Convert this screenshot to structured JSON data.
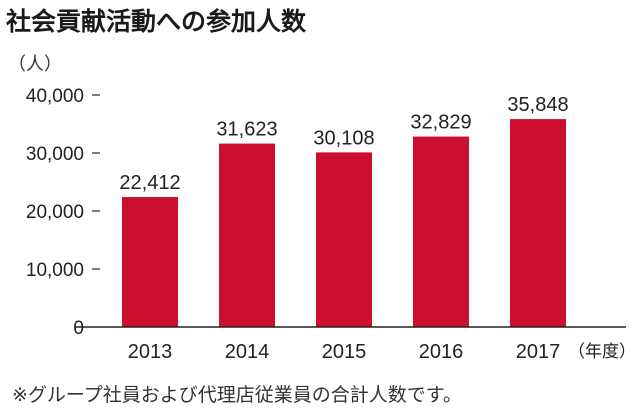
{
  "title": "社会貢献活動への参加人数",
  "footnote": "※グループ社員および代理店従業員の合計人数です。",
  "chart_data": {
    "type": "bar",
    "title": "社会貢献活動への参加人数",
    "ylabel": "（人）",
    "xlabel": "（年度）",
    "categories": [
      "2013",
      "2014",
      "2015",
      "2016",
      "2017"
    ],
    "values": [
      22412,
      31623,
      30108,
      32829,
      35848
    ],
    "value_labels": [
      "22,412",
      "31,623",
      "30,108",
      "32,829",
      "35,848"
    ],
    "ylim": [
      0,
      40000
    ],
    "yticks": [
      0,
      10000,
      20000,
      30000,
      40000
    ],
    "ytick_labels": [
      "0",
      "10,000",
      "20,000",
      "30,000",
      "40,000"
    ],
    "grid": false,
    "bar_color": "#cc0f2f"
  }
}
